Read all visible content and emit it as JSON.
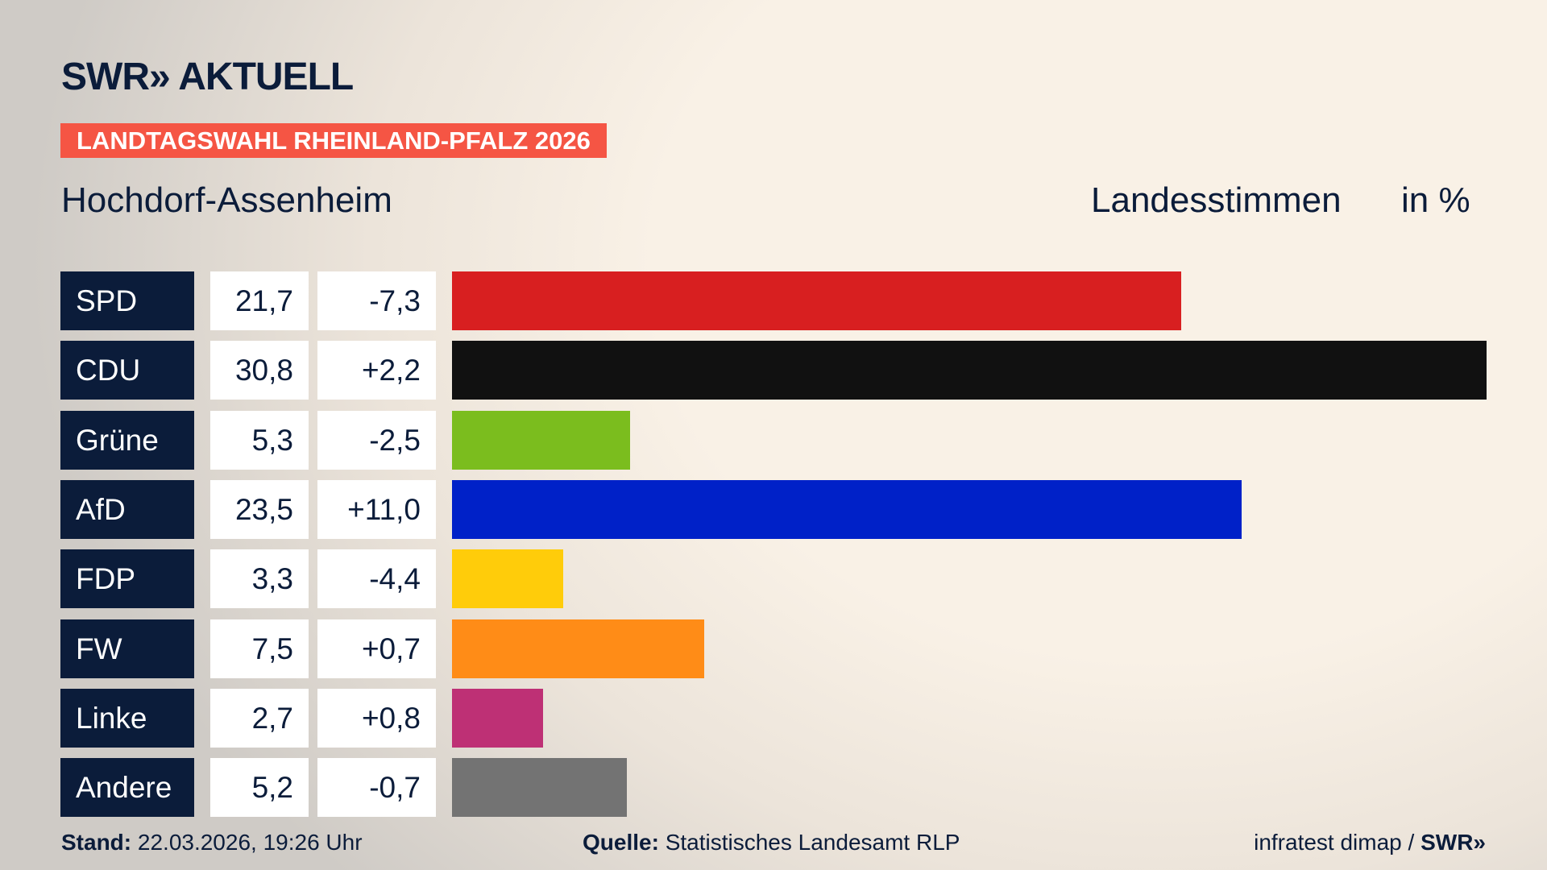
{
  "header": {
    "logo": "SWR» AKTUELL",
    "banner": "LANDTAGSWAHL RHEINLAND-PFALZ 2026",
    "region": "Hochdorf-Assenheim",
    "vote_type": "Landesstimmen",
    "unit": "in %"
  },
  "chart_data": {
    "type": "bar",
    "orientation": "horizontal",
    "categories": [
      "SPD",
      "CDU",
      "Grüne",
      "AfD",
      "FDP",
      "FW",
      "Linke",
      "Andere"
    ],
    "values": [
      21.7,
      30.8,
      5.3,
      23.5,
      3.3,
      7.5,
      2.7,
      5.2
    ],
    "value_labels": [
      "21,7",
      "30,8",
      "5,3",
      "23,5",
      "3,3",
      "7,5",
      "2,7",
      "5,2"
    ],
    "change_labels": [
      "-7,3",
      "+2,2",
      "-2,5",
      "+11,0",
      "-4,4",
      "+0,7",
      "+0,8",
      "-0,7"
    ],
    "colors": [
      "#d81f20",
      "#111111",
      "#7bbd1e",
      "#0021c8",
      "#ffcc0a",
      "#ff8c17",
      "#be3075",
      "#737373"
    ],
    "xlim": [
      0,
      30.8
    ]
  },
  "footer": {
    "stand_label": "Stand:",
    "stand_value": "22.03.2026, 19:26 Uhr",
    "source_label": "Quelle:",
    "source_value": "Statistisches Landesamt RLP",
    "credit": "infratest dimap / ",
    "credit_logo": "SWR»"
  }
}
